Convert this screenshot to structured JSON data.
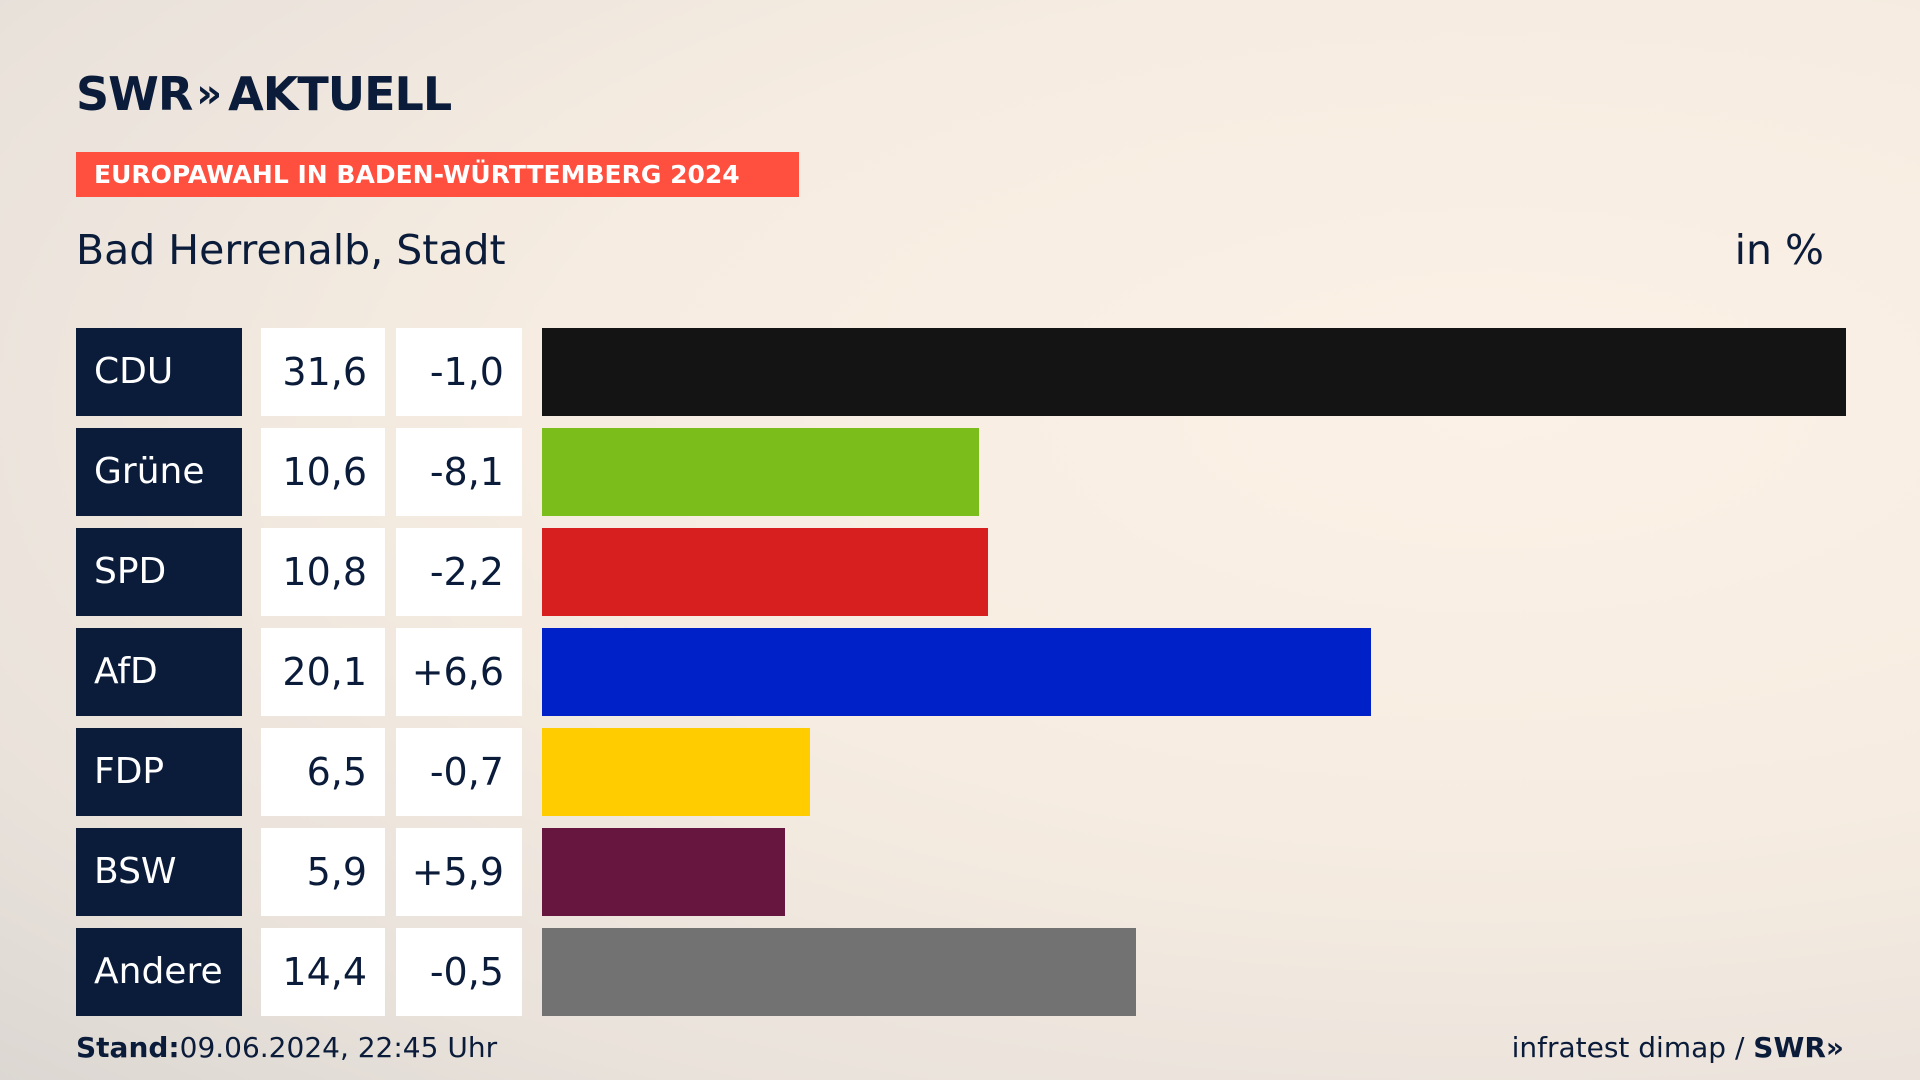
{
  "logo": {
    "brand": "SWR",
    "chevrons": "»",
    "product": "AKTUELL"
  },
  "banner": "EUROPAWAHL IN BADEN-WÜRTTEMBERG 2024",
  "place": "Bad Herrenalb, Stadt",
  "unit": "in %",
  "chart_data": {
    "type": "bar",
    "orientation": "horizontal",
    "title": "Bad Herrenalb, Stadt",
    "xlabel": "",
    "ylabel": "",
    "xlim": [
      0,
      31.6
    ],
    "categories": [
      "CDU",
      "Grüne",
      "SPD",
      "AfD",
      "FDP",
      "BSW",
      "Andere"
    ],
    "rows": [
      {
        "party": "CDU",
        "value": 31.6,
        "value_label": "31,6",
        "diff_label": "-1,0",
        "color": "#141414"
      },
      {
        "party": "Grüne",
        "value": 10.6,
        "value_label": "10,6",
        "diff_label": "-8,1",
        "color": "#7bbd1b"
      },
      {
        "party": "SPD",
        "value": 10.8,
        "value_label": "10,8",
        "diff_label": "-2,2",
        "color": "#d71f1f"
      },
      {
        "party": "AfD",
        "value": 20.1,
        "value_label": "20,1",
        "diff_label": "+6,6",
        "color": "#0020c8"
      },
      {
        "party": "FDP",
        "value": 6.5,
        "value_label": "6,5",
        "diff_label": "-0,7",
        "color": "#ffcc00"
      },
      {
        "party": "BSW",
        "value": 5.9,
        "value_label": "5,9",
        "diff_label": "+5,9",
        "color": "#67173f"
      },
      {
        "party": "Andere",
        "value": 14.4,
        "value_label": "14,4",
        "diff_label": "-0,5",
        "color": "#727273"
      }
    ]
  },
  "footer": {
    "stand_label": "Stand:",
    "stand_value": "09.06.2024, 22:45 Uhr",
    "source": "infratest dimap /",
    "source_brand": "SWR»"
  }
}
